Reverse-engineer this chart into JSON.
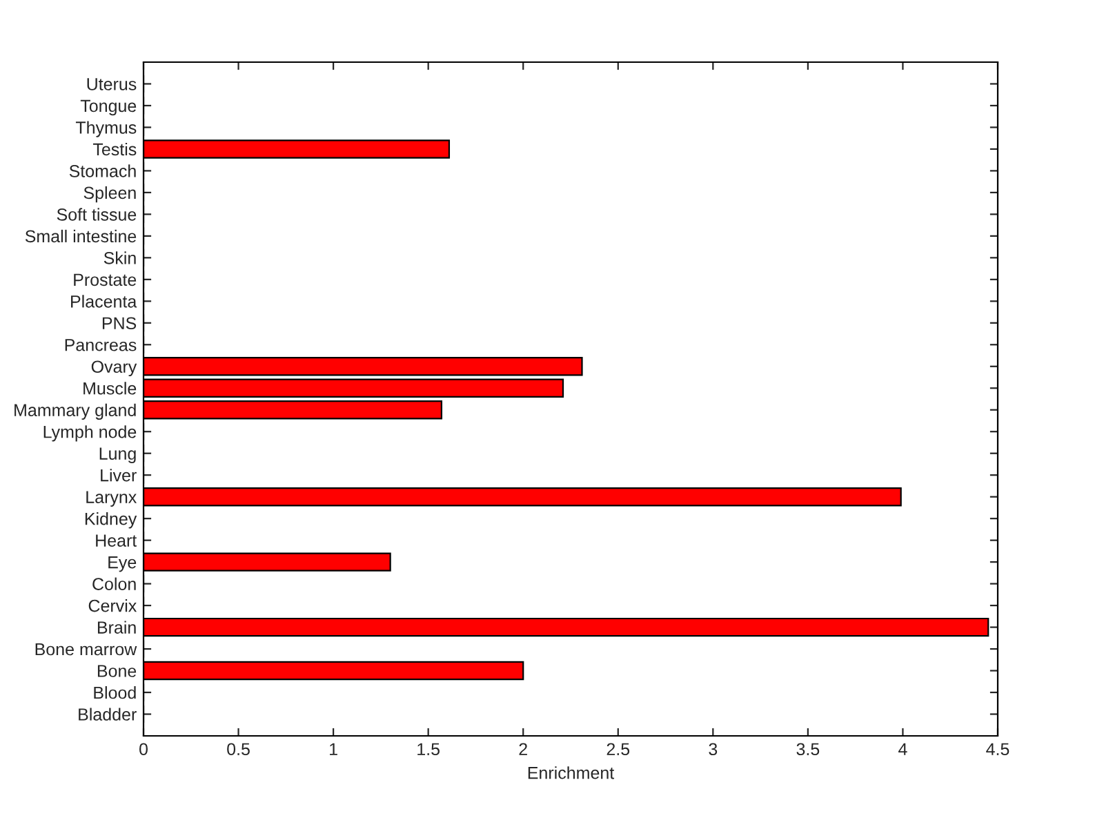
{
  "chart_data": {
    "type": "bar",
    "orientation": "horizontal",
    "xlabel": "Enrichment",
    "categories": [
      "Uterus",
      "Tongue",
      "Thymus",
      "Testis",
      "Stomach",
      "Spleen",
      "Soft tissue",
      "Small intestine",
      "Skin",
      "Prostate",
      "Placenta",
      "PNS",
      "Pancreas",
      "Ovary",
      "Muscle",
      "Mammary gland",
      "Lymph node",
      "Lung",
      "Liver",
      "Larynx",
      "Kidney",
      "Heart",
      "Eye",
      "Colon",
      "Cervix",
      "Brain",
      "Bone marrow",
      "Bone",
      "Blood",
      "Bladder"
    ],
    "values": [
      0,
      0,
      0,
      1.61,
      0,
      0,
      0,
      0,
      0,
      0,
      0,
      0,
      0,
      2.31,
      2.21,
      1.57,
      0,
      0,
      0,
      3.99,
      0,
      0,
      1.3,
      0,
      0,
      4.45,
      0,
      2.0,
      0,
      0
    ],
    "color": "#ff0000",
    "xlim": [
      0,
      4.5
    ],
    "xticks": [
      0,
      0.5,
      1,
      1.5,
      2,
      2.5,
      3,
      3.5,
      4,
      4.5
    ],
    "grid": false,
    "legend": false
  }
}
